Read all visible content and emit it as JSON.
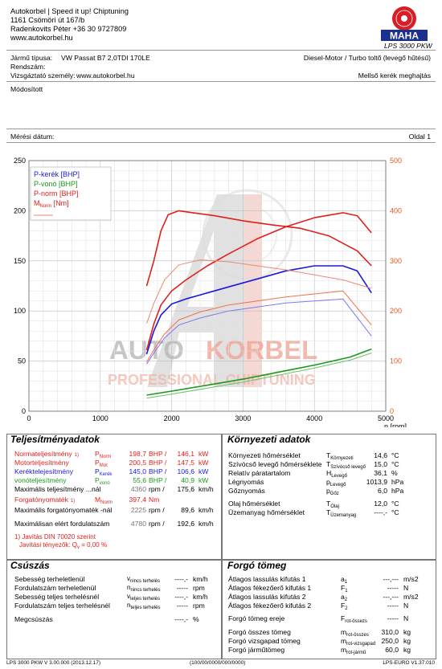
{
  "header": {
    "company_lines": [
      "Autokorbel | Speed it up! Chiptuning",
      "1161 Csömöri út 167/b",
      "Radenkovits Péter +36 30 9727809",
      "www.autokorbel.hu"
    ],
    "logo_text": "MAHA",
    "model": "LPS 3000 PKW"
  },
  "vehicle": {
    "type_label": "Jármű típusa:",
    "type_value": "VW Passat B7 2,0TDI 170LE",
    "plate_label": "Rendszám:",
    "inspector_label": "Vizsgáztató személy:",
    "inspector_value": "www.autokorbel.hu",
    "engine": "Diesel-Motor / Turbo toltő (levegő hűtésű)",
    "drive": "Mellső kerék meghajtás",
    "modified_label": "Módosított",
    "date_label": "Mérési dátum:",
    "page_label": "Oldal 1"
  },
  "chart_data": {
    "type": "line",
    "xlabel": "n [rpm]",
    "xlim": [
      0,
      5000
    ],
    "xticks": [
      0,
      1000,
      2000,
      3000,
      4000,
      5000
    ],
    "ylim_left": [
      0,
      250
    ],
    "yticks_left": [
      0,
      50,
      100,
      150,
      200,
      250
    ],
    "ylim_right": [
      0,
      500
    ],
    "yticks_right": [
      0,
      100,
      200,
      300,
      400,
      500
    ],
    "legend_position": "top-left",
    "grid": true,
    "series": [
      {
        "name": "P-kerék [BHP]",
        "axis": "left",
        "color": "#1a1adc",
        "x": [
          1650,
          1750,
          1850,
          2000,
          2200,
          2500,
          2800,
          3200,
          3600,
          4000,
          4400,
          4600,
          4800
        ],
        "y": [
          57,
          80,
          96,
          107,
          112,
          118,
          124,
          132,
          140,
          145,
          145,
          140,
          118
        ]
      },
      {
        "name": "P-vonó [BHP]",
        "axis": "left",
        "color": "#1a9a1a",
        "x": [
          1650,
          2000,
          2500,
          3000,
          3500,
          4000,
          4500,
          4800
        ],
        "y": [
          16,
          20,
          26,
          32,
          39,
          46,
          54,
          62
        ]
      },
      {
        "name": "P-norm [BHP]",
        "axis": "left",
        "color": "#e0201a",
        "x": [
          1650,
          1750,
          1850,
          2000,
          2200,
          2500,
          2800,
          3200,
          3600,
          4000,
          4400,
          4600,
          4800
        ],
        "y": [
          61,
          87,
          106,
          120,
          131,
          145,
          157,
          172,
          184,
          193,
          198,
          195,
          178
        ]
      },
      {
        "name": "M_Norm [Nm]",
        "axis": "right",
        "color": "#e0201a",
        "x": [
          1650,
          1750,
          1850,
          1950,
          2100,
          2300,
          2600,
          3000,
          3400,
          3800,
          4200,
          4600,
          4800
        ],
        "y": [
          250,
          300,
          360,
          392,
          400,
          396,
          390,
          380,
          372,
          365,
          350,
          320,
          290
        ]
      },
      {
        "name": "",
        "axis": "right",
        "color": "#f08870",
        "x": [
          1650,
          1750,
          1900,
          2100,
          2400,
          2800,
          3200,
          3600,
          4000,
          4400,
          4800
        ],
        "y": [
          175,
          215,
          262,
          292,
          302,
          298,
          290,
          282,
          272,
          262,
          245
        ]
      },
      {
        "name": "",
        "axis": "left",
        "color": "#7a7aee",
        "x": [
          1650,
          1750,
          1900,
          2100,
          2400,
          2800,
          3200,
          3600,
          4000,
          4400,
          4800
        ],
        "y": [
          47,
          58,
          73,
          86,
          93,
          100,
          104,
          108,
          110,
          112,
          75
        ]
      },
      {
        "name": "",
        "axis": "left",
        "color": "#6fbf6f",
        "x": [
          1650,
          2000,
          2500,
          3000,
          3500,
          4000,
          4500,
          4800
        ],
        "y": [
          13,
          17,
          23,
          29,
          36,
          43,
          51,
          58
        ]
      },
      {
        "name": "",
        "axis": "left",
        "color": "#f07050",
        "x": [
          1650,
          1750,
          1900,
          2100,
          2400,
          2800,
          3200,
          3600,
          4000,
          4400,
          4800
        ],
        "y": [
          49,
          61,
          77,
          91,
          99,
          106,
          110,
          114,
          117,
          120,
          86
        ]
      }
    ]
  },
  "watermark": {
    "line1a": "AUTO",
    "line1b": "KORBEL",
    "line2": "PROFESSIONAL CHIPTUNING"
  },
  "performance": {
    "title": "Teljesítményadatok",
    "rows": [
      {
        "label": "Normateljesítmény",
        "sup": "1)",
        "sym": "P",
        "sub": "Norm",
        "v1": "198,7",
        "u1": "BHP",
        "v2": "146,1",
        "u2": "kW"
      },
      {
        "label": "Motorteljesítmény",
        "sup": "",
        "sym": "P",
        "sub": "Mot",
        "v1": "200,5",
        "u1": "BHP",
        "v2": "147,5",
        "u2": "kW"
      },
      {
        "label": "Keréktelejesítmény",
        "sup": "",
        "sym": "P",
        "sub": "Kerék",
        "v1": "145,0",
        "u1": "BHP",
        "v2": "106,6",
        "u2": "kW"
      },
      {
        "label": "vonóteljesítmény",
        "sup": "",
        "sym": "P",
        "sub": "vonó",
        "v1": "55,6",
        "u1": "BHP",
        "v2": "40,9",
        "u2": "kW"
      },
      {
        "label": "Maximális teljesítmény ...nál",
        "sup": "",
        "sym": "",
        "sub": "",
        "v1": "4360",
        "u1": "rpm",
        "v2": "175,6",
        "u2": "km/h"
      }
    ],
    "torque_rows": [
      {
        "label": "Forgatónyomaték",
        "sup": "1)",
        "sym": "M",
        "sub": "Norm",
        "v1": "397,4",
        "u1": "Nm",
        "v2": "",
        "u2": ""
      },
      {
        "label": "Maximális forgatónyomaték -nál",
        "sup": "",
        "sym": "",
        "sub": "",
        "v1": "2225",
        "u1": "rpm",
        "v2": "89,6",
        "u2": "km/h"
      },
      {
        "label": "Maximálisan elért fordulatszám",
        "sup": "",
        "sym": "",
        "sub": "",
        "v1": "4780",
        "u1": "rpm",
        "v2": "192,6",
        "u2": "km/h"
      }
    ],
    "note1": "1) Javítás DIN 70020 szerint",
    "note2": "Javítási tényezők: Q",
    "note2_sub": "v",
    "note2_val": "=    0,00 %"
  },
  "environment": {
    "title": "Környezeti adatok",
    "rows": [
      {
        "label": "Környezeti hőmérséklet",
        "sym": "T",
        "sub": "Környezeti",
        "v": "14,6",
        "u": "°C"
      },
      {
        "label": "Szívócső levegő hőmérséklete",
        "sym": "T",
        "sub": "Szívócső levegő",
        "v": "15,0",
        "u": "°C"
      },
      {
        "label": "Relatív páratartalom",
        "sym": "H",
        "sub": "Levegő",
        "v": "36,1",
        "u": "%"
      },
      {
        "label": "Légnyomás",
        "sym": "p",
        "sub": "Levegő",
        "v": "1013,9",
        "u": "hPa"
      },
      {
        "label": "Gőznyomás",
        "sym": "p",
        "sub": "Gőz",
        "v": "6,0",
        "u": "hPa"
      },
      {
        "label": "Olaj hőmérséklet",
        "sym": "T",
        "sub": "Olaj",
        "v": "12,0",
        "u": "°C"
      },
      {
        "label": "Üzemanyag hőmérséklet",
        "sym": "T",
        "sub": "Üzemanyag",
        "v": "----,-",
        "u": "°C"
      }
    ]
  },
  "slip": {
    "title": "Csúszás",
    "rows": [
      {
        "label": "Sebesség terheletlenül",
        "sym": "v",
        "sub": "nincs terhelés",
        "v": "----,-",
        "u": "km/h"
      },
      {
        "label": "Fordulatszám terheletlenül",
        "sym": "n",
        "sub": "nincs terhelés",
        "v": "-----",
        "u": "rpm"
      },
      {
        "label": "Sebesség teljes terhelésnél",
        "sym": "v",
        "sub": "teljes terhelés",
        "v": "----,-",
        "u": "km/h"
      },
      {
        "label": "Fordulatszám teljes terhelésnél",
        "sym": "n",
        "sub": "teljes terhelés",
        "v": "-----",
        "u": "rpm"
      },
      {
        "label": "Megcsúszás",
        "sym": "",
        "sub": "",
        "v": "----,-",
        "u": "%"
      }
    ]
  },
  "inertia": {
    "title": "Forgó tömeg",
    "rows": [
      {
        "label": "Átlagos lassulás kifutás 1",
        "sym": "a",
        "sub": "1",
        "v": "---,---",
        "u": "m/s2"
      },
      {
        "label": "Átlagos fékezőerő kifutás 1",
        "sym": "F",
        "sub": "1",
        "v": "-----",
        "u": "N"
      },
      {
        "label": "Átlagos lassulás kifutás 2",
        "sym": "a",
        "sub": "2",
        "v": "---,---",
        "u": "m/s2"
      },
      {
        "label": "Átlagos fékezőerő kifutás 2",
        "sym": "F",
        "sub": "2",
        "v": "-----",
        "u": "N"
      },
      {
        "label": "Forgó tömeg ereje",
        "sym": "F",
        "sub": "rot-össezs",
        "v": "-----",
        "u": "N"
      },
      {
        "label": "Forgó összes tömeg",
        "sym": "m",
        "sub": "rot-összes",
        "v": "310,0",
        "u": "kg"
      },
      {
        "label": "Forgó vizsgapad tömeg",
        "sym": "m",
        "sub": "rot-vizsgapad",
        "v": "250,0",
        "u": "kg"
      },
      {
        "label": "Forgó járműtömeg",
        "sym": "m",
        "sub": "rot-jármű",
        "v": "60,0",
        "u": "kg"
      }
    ]
  },
  "footer": {
    "left": "LPS 3000 PKW V 3.00.000 (2013.12.17)",
    "mid": "(100/00/0000/000/0000)",
    "right": "LPS-EURO V1.37.010"
  }
}
